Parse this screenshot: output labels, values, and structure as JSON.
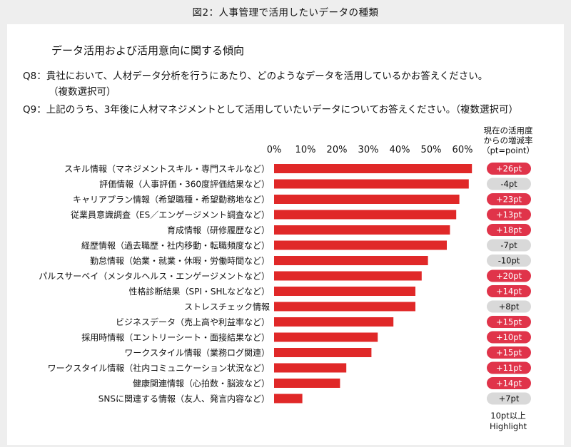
{
  "figure_title": "図2：人事管理で活用したいデータの種類",
  "subtitle": "データ活用および活用意向に関する傾向",
  "questions": {
    "q8_label": "Q8：",
    "q8_text": "貴社において、人材データ分析を行うにあたり、どのようなデータを活用しているかお答えください。",
    "q8_text_2": "（複数選択可）",
    "q9_label": "Q9：",
    "q9_text": "上記のうち、3年後に人材マネジメントとして活用していたいデータについてお答えください。（複数選択可）"
  },
  "rate_header": [
    "現在の活用度",
    "からの増減率",
    "（pt=point）"
  ],
  "highlight_note": [
    "10pt以上",
    "Highlight"
  ],
  "colors": {
    "bar": "#e02828",
    "highlight_pill": "#e0344a",
    "normal_pill": "#d9d9d9",
    "highlight_text": "#ffffff",
    "normal_text": "#111111"
  },
  "chart_data": {
    "type": "bar",
    "orientation": "horizontal",
    "xlim": [
      0,
      60
    ],
    "x_ticks": [
      "0%",
      "10%",
      "20%",
      "30%",
      "40%",
      "50%",
      "60%"
    ],
    "categories": [
      "スキル情報（マネジメントスキル・専門スキルなど）",
      "評価情報（人事評価・360度評価結果など）",
      "キャリアプラン情報（希望職種・希望勤務地など）",
      "従業員意識調査（ES／エンゲージメント調査など）",
      "育成情報（研修履歴など）",
      "経歴情報（過去職歴・社内移動・転職頻度など）",
      "勤怠情報（始業・就業・休暇・労働時間など）",
      "パルスサーベイ（メンタルヘルス・エンゲージメントなど）",
      "性格診断結果（SPI・SHLなどなど）",
      "ストレスチェック情報",
      "ビジネスデータ（売上高や利益率など）",
      "採用時情報（エントリーシート・面接結果など）",
      "ワークスタイル情報（業務ログ関連）",
      "ワークスタイル情報（社内コミュニケーション状況など）",
      "健康関連情報（心拍数・脳波など）",
      "SNSに関連する情報（友人、発言内容など）"
    ],
    "values": [
      63,
      62,
      59,
      58,
      56,
      55,
      49,
      47,
      45,
      45,
      38,
      33,
      31,
      23,
      21,
      9
    ],
    "change_labels": [
      "+26pt",
      "-4pt",
      "+23pt",
      "+13pt",
      "+18pt",
      "-7pt",
      "-10pt",
      "+20pt",
      "+14pt",
      "+8pt",
      "+15pt",
      "+10pt",
      "+15pt",
      "+11pt",
      "+14pt",
      "+7pt"
    ],
    "highlight": [
      true,
      false,
      true,
      true,
      true,
      false,
      false,
      true,
      true,
      false,
      true,
      true,
      true,
      true,
      true,
      false
    ]
  }
}
